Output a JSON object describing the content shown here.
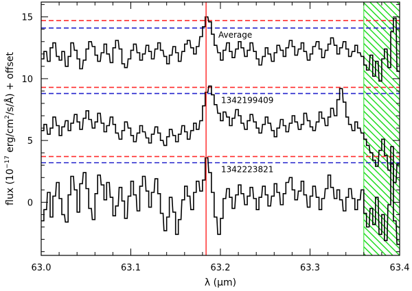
{
  "chart_data": {
    "type": "line",
    "xlabel": "λ (μm)",
    "ylabel": "flux (10",
    "ylabel_sup": "−17",
    "ylabel_rest": " erg/cm",
    "ylabel_sup2": "2",
    "ylabel_tail": "/s/Å) + offset",
    "xlim": [
      63.0,
      63.4
    ],
    "ylim": [
      -4.3,
      16.2
    ],
    "xticks": [
      63.0,
      63.1,
      63.2,
      63.3,
      63.4
    ],
    "xtick_labels": [
      "63.0",
      "63.1",
      "63.2",
      "63.3",
      "63.4"
    ],
    "yticks": [
      0,
      5,
      10,
      15
    ],
    "ytick_labels": [
      "0",
      "5",
      "10",
      "15"
    ],
    "grid": false,
    "vertical_line": {
      "x": 63.184,
      "color": "#ff2020"
    },
    "hatched_region": {
      "x_from": 63.36,
      "x_to": 63.4,
      "color": "#22dd22"
    },
    "series": [
      {
        "label": "Average",
        "red_level": 14.7,
        "blue_level": 14.1,
        "x": [
          63.0,
          63.003,
          63.007,
          63.01,
          63.013,
          63.017,
          63.02,
          63.023,
          63.027,
          63.03,
          63.033,
          63.037,
          63.04,
          63.043,
          63.047,
          63.05,
          63.053,
          63.057,
          63.06,
          63.063,
          63.067,
          63.07,
          63.073,
          63.077,
          63.08,
          63.083,
          63.087,
          63.09,
          63.093,
          63.097,
          63.1,
          63.103,
          63.107,
          63.11,
          63.113,
          63.117,
          63.12,
          63.123,
          63.127,
          63.13,
          63.133,
          63.137,
          63.14,
          63.143,
          63.147,
          63.15,
          63.153,
          63.157,
          63.16,
          63.163,
          63.167,
          63.17,
          63.173,
          63.177,
          63.18,
          63.183,
          63.187,
          63.19,
          63.193,
          63.197,
          63.2,
          63.203,
          63.207,
          63.21,
          63.213,
          63.217,
          63.22,
          63.223,
          63.227,
          63.23,
          63.233,
          63.237,
          63.24,
          63.243,
          63.247,
          63.25,
          63.253,
          63.257,
          63.26,
          63.263,
          63.267,
          63.27,
          63.273,
          63.277,
          63.28,
          63.283,
          63.287,
          63.29,
          63.293,
          63.297,
          63.3,
          63.303,
          63.307,
          63.31,
          63.313,
          63.317,
          63.32,
          63.323,
          63.327,
          63.33,
          63.333,
          63.337,
          63.34,
          63.343,
          63.347,
          63.35,
          63.353,
          63.357,
          63.36,
          63.363,
          63.367,
          63.37,
          63.373,
          63.377,
          63.38,
          63.383,
          63.387,
          63.39,
          63.393,
          63.397
        ],
        "values": [
          11.6,
          12.2,
          11.4,
          12.5,
          12.9,
          11.8,
          11.5,
          12.2,
          11.0,
          11.8,
          12.9,
          12.3,
          11.6,
          10.8,
          11.5,
          12.4,
          13.0,
          12.6,
          11.9,
          11.4,
          12.1,
          12.8,
          12.0,
          11.3,
          12.5,
          13.1,
          12.4,
          11.2,
          10.9,
          11.6,
          12.3,
          12.8,
          12.1,
          11.5,
          12.0,
          12.7,
          12.2,
          11.6,
          12.4,
          12.9,
          12.3,
          11.8,
          11.2,
          11.9,
          12.6,
          12.1,
          11.4,
          12.2,
          12.8,
          13.1,
          12.5,
          12.0,
          12.6,
          13.4,
          14.2,
          15.0,
          14.6,
          13.6,
          12.7,
          12.1,
          11.5,
          12.3,
          12.9,
          12.2,
          11.7,
          12.4,
          13.0,
          12.5,
          11.8,
          12.3,
          12.9,
          12.2,
          11.6,
          11.1,
          11.8,
          12.5,
          12.0,
          11.4,
          12.1,
          12.7,
          12.3,
          11.8,
          12.5,
          13.1,
          12.6,
          11.9,
          12.4,
          12.9,
          12.2,
          11.5,
          12.0,
          12.6,
          13.0,
          12.4,
          11.7,
          12.3,
          12.8,
          13.3,
          12.7,
          12.0,
          12.5,
          13.0,
          12.4,
          11.8,
          12.2,
          12.7,
          12.1,
          11.8,
          11.1,
          10.7,
          11.9,
          10.2,
          11.4,
          9.8,
          11.6,
          12.4,
          10.9,
          13.8,
          14.9,
          10.6
        ]
      },
      {
        "label": "1342199409",
        "red_level": 9.3,
        "blue_level": 8.8,
        "x": [
          63.0,
          63.003,
          63.007,
          63.01,
          63.013,
          63.017,
          63.02,
          63.023,
          63.027,
          63.03,
          63.033,
          63.037,
          63.04,
          63.043,
          63.047,
          63.05,
          63.053,
          63.057,
          63.06,
          63.063,
          63.067,
          63.07,
          63.073,
          63.077,
          63.08,
          63.083,
          63.087,
          63.09,
          63.093,
          63.097,
          63.1,
          63.103,
          63.107,
          63.11,
          63.113,
          63.117,
          63.12,
          63.123,
          63.127,
          63.13,
          63.133,
          63.137,
          63.14,
          63.143,
          63.147,
          63.15,
          63.153,
          63.157,
          63.16,
          63.163,
          63.167,
          63.17,
          63.173,
          63.177,
          63.18,
          63.183,
          63.187,
          63.19,
          63.193,
          63.197,
          63.2,
          63.203,
          63.207,
          63.21,
          63.213,
          63.217,
          63.22,
          63.223,
          63.227,
          63.23,
          63.233,
          63.237,
          63.24,
          63.243,
          63.247,
          63.25,
          63.253,
          63.257,
          63.26,
          63.263,
          63.267,
          63.27,
          63.273,
          63.277,
          63.28,
          63.283,
          63.287,
          63.29,
          63.293,
          63.297,
          63.3,
          63.303,
          63.307,
          63.31,
          63.313,
          63.317,
          63.32,
          63.323,
          63.327,
          63.33,
          63.333,
          63.337,
          63.34,
          63.343,
          63.347,
          63.35,
          63.353,
          63.357,
          63.36,
          63.363,
          63.367,
          63.37,
          63.373,
          63.377,
          63.38,
          63.383,
          63.387,
          63.39,
          63.393,
          63.397
        ],
        "values": [
          5.8,
          6.3,
          5.5,
          6.0,
          6.9,
          6.2,
          5.4,
          6.1,
          6.6,
          5.8,
          6.4,
          7.1,
          6.5,
          5.9,
          6.8,
          7.4,
          6.7,
          6.0,
          6.5,
          7.2,
          6.4,
          5.7,
          6.2,
          6.9,
          6.3,
          5.6,
          5.1,
          5.8,
          6.5,
          6.0,
          5.4,
          4.9,
          5.6,
          6.2,
          5.7,
          5.2,
          4.8,
          5.5,
          6.1,
          5.6,
          5.0,
          4.6,
          5.3,
          5.9,
          5.4,
          4.9,
          5.5,
          6.2,
          5.7,
          5.1,
          5.8,
          6.4,
          5.9,
          6.6,
          7.8,
          8.9,
          9.4,
          8.7,
          7.9,
          7.2,
          6.6,
          7.3,
          6.9,
          6.2,
          6.8,
          7.5,
          7.0,
          6.4,
          5.9,
          6.6,
          7.1,
          6.5,
          6.0,
          5.6,
          6.3,
          6.9,
          6.4,
          5.8,
          5.3,
          6.0,
          6.7,
          6.2,
          5.7,
          6.4,
          7.0,
          6.5,
          5.9,
          6.3,
          7.2,
          6.6,
          6.1,
          5.8,
          6.5,
          7.3,
          6.8,
          6.2,
          6.9,
          7.6,
          7.0,
          8.3,
          9.2,
          8.1,
          6.9,
          6.3,
          5.8,
          6.5,
          6.0,
          5.6,
          5.1,
          4.6,
          4.0,
          3.4,
          2.9,
          4.2,
          5.1,
          3.8,
          2.6,
          4.5,
          1.6,
          3.1
        ]
      },
      {
        "label": "1342223821",
        "red_level": 3.7,
        "blue_level": 3.2,
        "x": [
          63.0,
          63.003,
          63.007,
          63.01,
          63.013,
          63.017,
          63.02,
          63.023,
          63.027,
          63.03,
          63.033,
          63.037,
          63.04,
          63.043,
          63.047,
          63.05,
          63.053,
          63.057,
          63.06,
          63.063,
          63.067,
          63.07,
          63.073,
          63.077,
          63.08,
          63.083,
          63.087,
          63.09,
          63.093,
          63.097,
          63.1,
          63.103,
          63.107,
          63.11,
          63.113,
          63.117,
          63.12,
          63.123,
          63.127,
          63.13,
          63.133,
          63.137,
          63.14,
          63.143,
          63.147,
          63.15,
          63.153,
          63.157,
          63.16,
          63.163,
          63.167,
          63.17,
          63.173,
          63.177,
          63.18,
          63.183,
          63.187,
          63.19,
          63.193,
          63.197,
          63.2,
          63.203,
          63.207,
          63.21,
          63.213,
          63.217,
          63.22,
          63.223,
          63.227,
          63.23,
          63.233,
          63.237,
          63.24,
          63.243,
          63.247,
          63.25,
          63.253,
          63.257,
          63.26,
          63.263,
          63.267,
          63.27,
          63.273,
          63.277,
          63.28,
          63.283,
          63.287,
          63.29,
          63.293,
          63.297,
          63.3,
          63.303,
          63.307,
          63.31,
          63.313,
          63.317,
          63.32,
          63.323,
          63.327,
          63.33,
          63.333,
          63.337,
          63.34,
          63.343,
          63.347,
          63.35,
          63.353,
          63.357,
          63.36,
          63.363,
          63.367,
          63.37,
          63.373,
          63.377,
          63.38,
          63.383,
          63.387,
          63.39,
          63.393,
          63.397
        ],
        "values": [
          -1.5,
          -0.6,
          0.8,
          -1.2,
          0.5,
          1.6,
          0.3,
          -1.0,
          -1.6,
          0.6,
          2.1,
          1.0,
          -0.8,
          1.5,
          2.4,
          1.1,
          -0.5,
          -1.4,
          0.7,
          2.2,
          1.4,
          0.2,
          1.6,
          0.4,
          -1.1,
          -0.3,
          1.2,
          0.1,
          -1.3,
          0.5,
          1.7,
          0.6,
          -0.7,
          1.3,
          2.1,
          0.9,
          -0.4,
          0.8,
          1.9,
          0.7,
          -0.9,
          -2.3,
          -1.2,
          0.4,
          -0.8,
          -2.6,
          -1.4,
          0.2,
          1.3,
          0.5,
          -0.6,
          0.8,
          1.7,
          0.9,
          1.8,
          3.6,
          2.4,
          0.8,
          -1.2,
          -2.6,
          -1.3,
          0.3,
          1.1,
          0.4,
          -0.5,
          0.6,
          1.4,
          0.7,
          -0.2,
          0.5,
          1.2,
          0.3,
          -0.6,
          0.4,
          1.3,
          0.6,
          -0.3,
          0.5,
          1.5,
          0.8,
          -0.2,
          0.7,
          1.6,
          2.0,
          1.0,
          0.2,
          0.9,
          1.7,
          0.6,
          -0.4,
          0.5,
          1.3,
          0.4,
          -0.6,
          0.3,
          1.1,
          2.2,
          1.2,
          0.3,
          1.0,
          0.2,
          -0.7,
          0.4,
          1.1,
          0.3,
          -0.6,
          0.2,
          1.0,
          -0.9,
          -2.0,
          -0.5,
          -1.8,
          0.4,
          -2.6,
          -1.0,
          -3.1,
          -0.2,
          3.1,
          -1.5,
          -3.4
        ]
      }
    ]
  }
}
